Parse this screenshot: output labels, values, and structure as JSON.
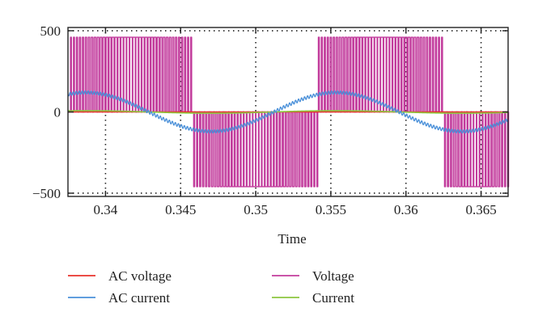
{
  "chart_data": {
    "type": "line",
    "title": "",
    "xlabel": "Time",
    "ylabel": "",
    "xlim": [
      0.3375,
      0.3668
    ],
    "ylim": [
      -520,
      520
    ],
    "grid": true,
    "legend_position": "bottom",
    "x_ticks": [
      {
        "value": 0.34,
        "label": "0.34"
      },
      {
        "value": 0.345,
        "label": "0.345"
      },
      {
        "value": 0.35,
        "label": "0.35"
      },
      {
        "value": 0.355,
        "label": "0.355"
      },
      {
        "value": 0.36,
        "label": "0.36"
      },
      {
        "value": 0.365,
        "label": "0.365"
      }
    ],
    "y_ticks": [
      {
        "value": 500,
        "label": "500"
      },
      {
        "value": 0,
        "label": "0"
      },
      {
        "value": -500,
        "label": "−500"
      }
    ],
    "fundamental_period": 0.01667,
    "series": [
      {
        "name": "AC voltage",
        "color": "#e8322b",
        "amplitude": 0,
        "description_type": "sine"
      },
      {
        "name": "AC current",
        "color": "#4a90d9",
        "amplitude": 120,
        "phase_peak_x": 0.3387,
        "ripple_amplitude": 10,
        "description_type": "sine_with_ripple"
      },
      {
        "name": "Voltage",
        "color": "#c23b9c",
        "amplitude": 460,
        "positive_pulse_intervals": [
          [
            0.3376,
            0.3458
          ],
          [
            0.3541,
            0.3625
          ]
        ],
        "negative_pulse_intervals": [
          [
            0.3458,
            0.3541
          ],
          [
            0.3625,
            0.3668
          ]
        ],
        "pulse_period": 0.0002,
        "description_type": "pwm"
      },
      {
        "name": "Current",
        "color": "#8dc63f",
        "amplitude": 8,
        "phase_peak_x": 0.3387,
        "description_type": "sine"
      }
    ]
  },
  "legend": {
    "items": [
      {
        "label": "AC voltage",
        "color": "#e8322b"
      },
      {
        "label": "AC current",
        "color": "#4a90d9"
      },
      {
        "label": "Voltage",
        "color": "#c23b9c"
      },
      {
        "label": "Current",
        "color": "#8dc63f"
      }
    ]
  }
}
